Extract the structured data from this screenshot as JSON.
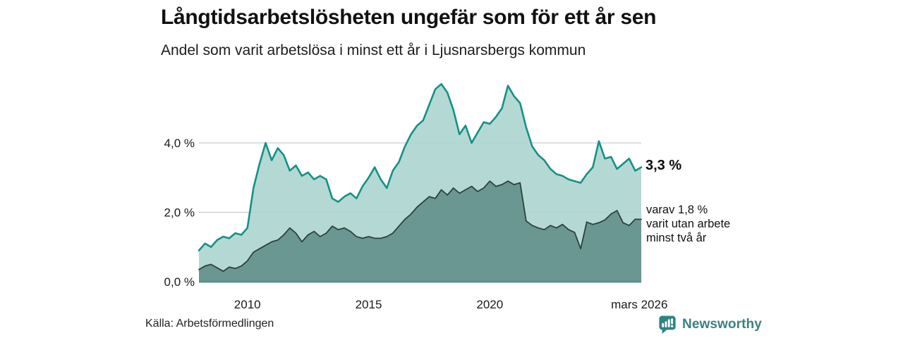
{
  "header": {
    "title": "Långtidsarbetslösheten ungefär som för ett år sen",
    "subtitle": "Andel som varit arbetslösa i minst ett år i Ljusnarsbergs kommun"
  },
  "annotations": {
    "latest_total": "3,3 %",
    "secondary_lines": [
      "varav 1,8 %",
      "varit utan arbete",
      "minst två år"
    ]
  },
  "footer": {
    "source": "Källa: Arbetsförmedlingen",
    "brand": "Newsworthy"
  },
  "colors": {
    "total_line": "#149186",
    "total_fill": "#aad4cf",
    "two_year_line": "#2e403e",
    "two_year_fill": "#67948f",
    "baseline": "#5d908b",
    "gridline": "#c9ccd1",
    "brand_teal": "#3c8180",
    "text": "#111111"
  },
  "chart_data": {
    "type": "area",
    "title": "Långtidsarbetslösheten ungefär som för ett år sen",
    "subtitle": "Andel som varit arbetslösa i minst ett år i Ljusnarsbergs kommun",
    "unit": "%",
    "x_start": 2008.0,
    "x_step": 0.25,
    "x_end": 2026.25,
    "xlim": [
      2008.0,
      2026.25
    ],
    "ylim": [
      0,
      5.9
    ],
    "grid": true,
    "legend_position": "direct-labels-right",
    "yticks": [
      {
        "value": 0,
        "label": "0,0 %"
      },
      {
        "value": 2,
        "label": "2,0 %"
      },
      {
        "value": 4,
        "label": "4,0 %"
      }
    ],
    "xticks": [
      {
        "x": 2010,
        "label": "2010"
      },
      {
        "x": 2015,
        "label": "2015"
      },
      {
        "x": 2020,
        "label": "2020"
      },
      {
        "x": 2026.17,
        "label": "mars 2026"
      }
    ],
    "series": [
      {
        "name": "Arbetslösa minst ett år",
        "end_label": "3,3 %",
        "end_value": 3.3,
        "values": [
          0.9,
          1.1,
          1.0,
          1.2,
          1.3,
          1.25,
          1.4,
          1.35,
          1.55,
          2.7,
          3.4,
          4.0,
          3.5,
          3.85,
          3.65,
          3.2,
          3.35,
          3.05,
          3.15,
          2.95,
          3.05,
          2.95,
          2.4,
          2.3,
          2.45,
          2.55,
          2.4,
          2.75,
          3.0,
          3.3,
          2.95,
          2.7,
          3.2,
          3.45,
          3.9,
          4.25,
          4.5,
          4.65,
          5.1,
          5.55,
          5.7,
          5.45,
          4.95,
          4.25,
          4.5,
          4.0,
          4.3,
          4.6,
          4.55,
          4.75,
          5.0,
          5.65,
          5.35,
          5.15,
          4.45,
          3.9,
          3.65,
          3.5,
          3.25,
          3.1,
          3.05,
          2.95,
          2.9,
          2.85,
          3.1,
          3.3,
          4.05,
          3.55,
          3.6,
          3.25,
          3.4,
          3.55,
          3.2,
          3.3
        ]
      },
      {
        "name": "Arbetslösa minst två år",
        "end_label": "varav 1,8 % varit utan arbete minst två år",
        "end_value": 1.8,
        "values": [
          0.35,
          0.45,
          0.5,
          0.4,
          0.3,
          0.42,
          0.38,
          0.45,
          0.6,
          0.85,
          0.95,
          1.05,
          1.15,
          1.2,
          1.35,
          1.55,
          1.4,
          1.15,
          1.35,
          1.45,
          1.3,
          1.4,
          1.6,
          1.5,
          1.55,
          1.45,
          1.3,
          1.25,
          1.3,
          1.25,
          1.25,
          1.3,
          1.4,
          1.6,
          1.8,
          1.95,
          2.15,
          2.3,
          2.45,
          2.4,
          2.65,
          2.5,
          2.7,
          2.55,
          2.65,
          2.75,
          2.6,
          2.7,
          2.9,
          2.75,
          2.8,
          2.9,
          2.8,
          2.85,
          1.75,
          1.62,
          1.55,
          1.5,
          1.62,
          1.55,
          1.65,
          1.5,
          1.42,
          0.95,
          1.72,
          1.65,
          1.7,
          1.78,
          1.95,
          2.05,
          1.7,
          1.62,
          1.8,
          1.8
        ]
      }
    ]
  }
}
